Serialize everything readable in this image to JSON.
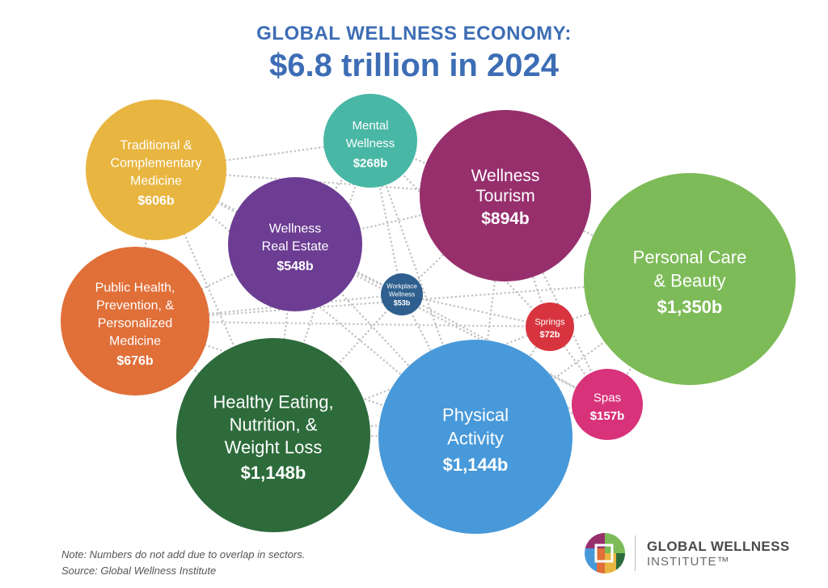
{
  "chart_data": {
    "type": "bubble",
    "subtitle": "GLOBAL WELLNESS ECONOMY:",
    "title": "$6.8 trillion in 2024",
    "unit": "US$ billions",
    "sectors": [
      {
        "id": "personal-care-beauty",
        "label": [
          "Personal Care",
          "& Beauty"
        ],
        "value_label": "$1,350b",
        "value": 1350,
        "color": "#7dbb58"
      },
      {
        "id": "healthy-eating",
        "label": [
          "Healthy Eating,",
          "Nutrition, &",
          "Weight Loss"
        ],
        "value_label": "$1,148b",
        "value": 1148,
        "color": "#2d6b3b"
      },
      {
        "id": "physical-activity",
        "label": [
          "Physical",
          "Activity"
        ],
        "value_label": "$1,144b",
        "value": 1144,
        "color": "#4899d9"
      },
      {
        "id": "wellness-tourism",
        "label": [
          "Wellness",
          "Tourism"
        ],
        "value_label": "$894b",
        "value": 894,
        "color": "#972f6d"
      },
      {
        "id": "public-health",
        "label": [
          "Public Health,",
          "Prevention, &",
          "Personalized",
          "Medicine"
        ],
        "value_label": "$676b",
        "value": 676,
        "color": "#e06f38"
      },
      {
        "id": "traditional-medicine",
        "label": [
          "Traditional &",
          "Complementary",
          "Medicine"
        ],
        "value_label": "$606b",
        "value": 606,
        "color": "#e8b540"
      },
      {
        "id": "wellness-real-estate",
        "label": [
          "Wellness",
          "Real Estate"
        ],
        "value_label": "$548b",
        "value": 548,
        "color": "#6c3d93"
      },
      {
        "id": "mental-wellness",
        "label": [
          "Mental",
          "Wellness"
        ],
        "value_label": "$268b",
        "value": 268,
        "color": "#49b7a5"
      },
      {
        "id": "spas",
        "label": [
          "Spas"
        ],
        "value_label": "$157b",
        "value": 157,
        "color": "#d8327a"
      },
      {
        "id": "springs",
        "label": [
          "Springs"
        ],
        "value_label": "$72b",
        "value": 72,
        "color": "#d7343f"
      },
      {
        "id": "workplace-wellness",
        "label": [
          "Workplace",
          "Wellness"
        ],
        "value_label": "$53b",
        "value": 53,
        "color": "#2e5f8e"
      }
    ]
  },
  "footer": {
    "note": "Note: Numbers do not add due to overlap in sectors.",
    "source": "Source: Global Wellness Institute"
  },
  "logo": {
    "name": "GLOBAL WELLNESS",
    "sub": "INSTITUTE™",
    "colors": [
      "#972f6d",
      "#7dbb58",
      "#4899d9",
      "#e06f38",
      "#e8b540",
      "#2d6b3b"
    ]
  }
}
